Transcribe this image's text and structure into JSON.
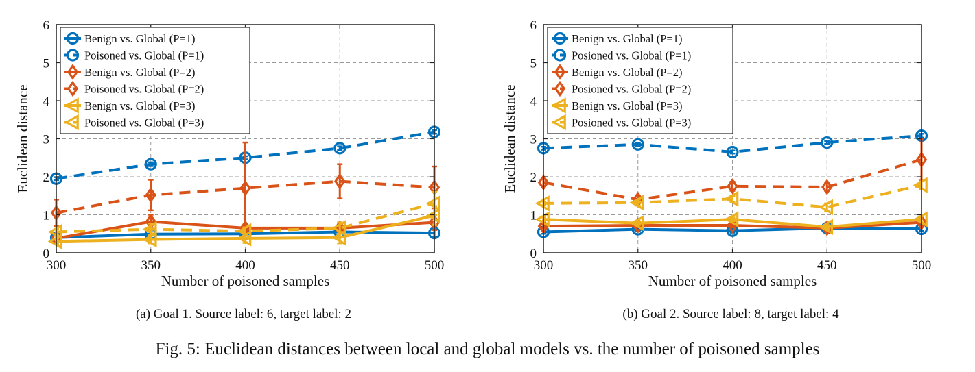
{
  "chart_data": [
    {
      "type": "line",
      "xlabel": "Number of poisoned samples",
      "ylabel": "Euclidean distance",
      "x": [
        300,
        350,
        400,
        450,
        500
      ],
      "xlim": [
        300,
        500
      ],
      "ylim": [
        0,
        6
      ],
      "xticks": [
        "300",
        "350",
        "400",
        "450",
        "500"
      ],
      "yticks": [
        "0",
        "1",
        "2",
        "3",
        "4",
        "5",
        "6"
      ],
      "grid": true,
      "legend_position": "top-left",
      "series": [
        {
          "name": "Benign vs. Global (P=1)",
          "color": "#0072BD",
          "marker": "circle",
          "style": "solid",
          "values": [
            0.4,
            0.49,
            0.5,
            0.55,
            0.52
          ],
          "err": [
            0.12,
            0.1,
            0.05,
            0.05,
            0.1
          ]
        },
        {
          "name": "Poisoned vs. Global (P=1)",
          "color": "#0072BD",
          "marker": "circle",
          "style": "dashed",
          "values": [
            1.95,
            2.33,
            2.5,
            2.75,
            3.18
          ],
          "err": [
            0.04,
            0.05,
            0.04,
            0.05,
            0.05
          ]
        },
        {
          "name": "Benign vs. Global (P=2)",
          "color": "#D95319",
          "marker": "diamond",
          "style": "solid",
          "values": [
            0.38,
            0.82,
            0.65,
            0.65,
            0.8
          ],
          "err": [
            0.1,
            0.18,
            0.08,
            0.05,
            0.2
          ]
        },
        {
          "name": "Poisoned vs. Global (P=2)",
          "color": "#D95319",
          "marker": "diamond",
          "style": "dashed",
          "values": [
            1.05,
            1.52,
            1.7,
            1.88,
            1.72
          ],
          "err": [
            0.35,
            0.4,
            1.2,
            0.45,
            0.55
          ]
        },
        {
          "name": "Benign vs. Global (P=3)",
          "color": "#EDB120",
          "marker": "triangle-left",
          "style": "solid",
          "values": [
            0.3,
            0.35,
            0.38,
            0.4,
            0.98
          ],
          "err": [
            0.08,
            0.1,
            0.12,
            0.15,
            0.25
          ]
        },
        {
          "name": "Poisoned vs. Global (P=3)",
          "color": "#EDB120",
          "marker": "triangle-left",
          "style": "dashed",
          "values": [
            0.55,
            0.62,
            0.57,
            0.65,
            1.3
          ],
          "err": [
            0.08,
            0.15,
            0.1,
            0.15,
            0.3
          ]
        }
      ],
      "caption": "(a) Goal 1. Source label: 6, target label: 2"
    },
    {
      "type": "line",
      "xlabel": "Number of poisoned samples",
      "ylabel": "Euclidean distance",
      "x": [
        300,
        350,
        400,
        450,
        500
      ],
      "xlim": [
        300,
        500
      ],
      "ylim": [
        0,
        6
      ],
      "xticks": [
        "300",
        "350",
        "400",
        "450",
        "500"
      ],
      "yticks": [
        "0",
        "1",
        "2",
        "3",
        "4",
        "5",
        "6"
      ],
      "grid": true,
      "legend_position": "top-left",
      "series": [
        {
          "name": "Benign vs. Global (P=1)",
          "color": "#0072BD",
          "marker": "circle",
          "style": "solid",
          "values": [
            0.55,
            0.62,
            0.58,
            0.65,
            0.63
          ],
          "err": [
            0.05,
            0.05,
            0.05,
            0.12,
            0.05
          ]
        },
        {
          "name": "Posioned vs. Global (P=1)",
          "color": "#0072BD",
          "marker": "circle",
          "style": "dashed",
          "values": [
            2.75,
            2.85,
            2.65,
            2.9,
            3.08
          ],
          "err": [
            0.04,
            0.04,
            0.04,
            0.04,
            0.05
          ]
        },
        {
          "name": "Benign vs. Global (P=2)",
          "color": "#D95319",
          "marker": "diamond",
          "style": "solid",
          "values": [
            0.7,
            0.72,
            0.72,
            0.65,
            0.8
          ],
          "err": [
            0.05,
            0.05,
            0.05,
            0.08,
            0.1
          ]
        },
        {
          "name": "Posioned vs. Global (P=2)",
          "color": "#D95319",
          "marker": "diamond",
          "style": "dashed",
          "values": [
            1.85,
            1.4,
            1.75,
            1.73,
            2.45
          ],
          "err": [
            0.1,
            0.1,
            0.12,
            0.1,
            0.55
          ]
        },
        {
          "name": "Benign vs. Global (P=3)",
          "color": "#EDB120",
          "marker": "triangle-left",
          "style": "solid",
          "values": [
            0.88,
            0.78,
            0.88,
            0.68,
            0.88
          ],
          "err": [
            0.05,
            0.05,
            0.05,
            0.05,
            0.08
          ]
        },
        {
          "name": "Posioned vs. Global (P=3)",
          "color": "#EDB120",
          "marker": "triangle-left",
          "style": "dashed",
          "values": [
            1.3,
            1.32,
            1.42,
            1.2,
            1.78
          ],
          "err": [
            0.05,
            0.08,
            0.08,
            0.1,
            0.1
          ]
        }
      ],
      "caption": "(b) Goal 2. Source label: 8, target label: 4"
    }
  ],
  "figure_caption": "Fig. 5: Euclidean distances between local and global models vs. the number of poisoned samples"
}
